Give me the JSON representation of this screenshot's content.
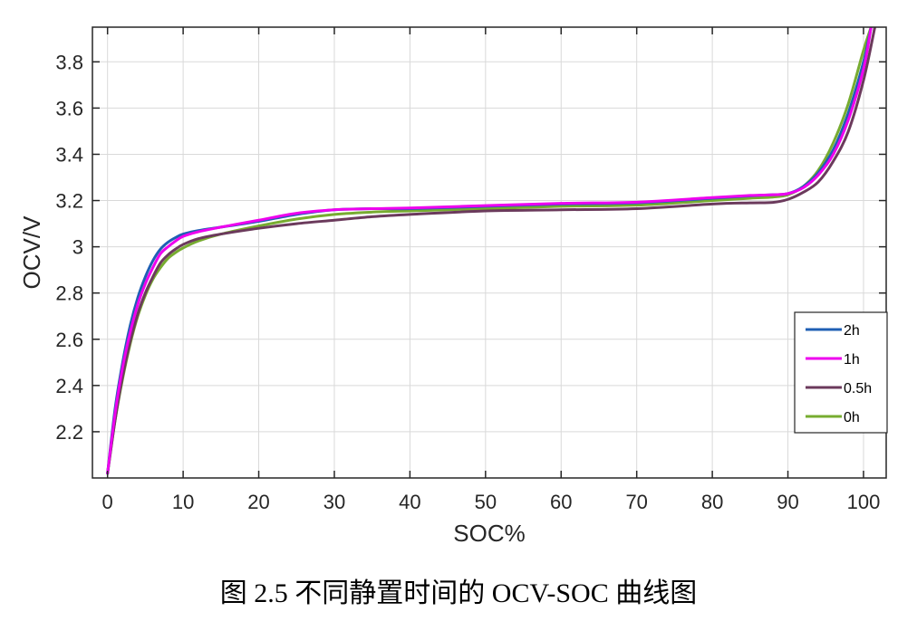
{
  "caption": "图 2.5 不同静置时间的 OCV-SOC 曲线图",
  "chart_data": {
    "type": "line",
    "xlabel": "SOC%",
    "ylabel": "OCV/V",
    "xlim": [
      -2,
      103
    ],
    "ylim": [
      2.0,
      3.95
    ],
    "xticks": [
      0,
      10,
      20,
      30,
      40,
      50,
      60,
      70,
      80,
      90,
      100
    ],
    "yticks": [
      2.2,
      2.4,
      2.6,
      2.8,
      3.0,
      3.2,
      3.4,
      3.6,
      3.8
    ],
    "ytick_labels": [
      "2.2",
      "2.4",
      "2.6",
      "2.8",
      "3",
      "3.2",
      "3.4",
      "3.6",
      "3.8"
    ],
    "grid": true,
    "legend_position": "right",
    "series": [
      {
        "name": "2h",
        "color": "#1f5fb4",
        "x": [
          0,
          1,
          2,
          3,
          4,
          5,
          6,
          7,
          8,
          9,
          10,
          12,
          15,
          20,
          25,
          30,
          35,
          40,
          50,
          60,
          70,
          80,
          85,
          88,
          90,
          92,
          94,
          96,
          98,
          100,
          101
        ],
        "y": [
          2.02,
          2.3,
          2.5,
          2.66,
          2.78,
          2.87,
          2.94,
          2.99,
          3.02,
          3.04,
          3.055,
          3.07,
          3.085,
          3.11,
          3.14,
          3.16,
          3.165,
          3.165,
          3.175,
          3.185,
          3.19,
          3.21,
          3.22,
          3.225,
          3.23,
          3.26,
          3.32,
          3.42,
          3.58,
          3.8,
          3.95
        ]
      },
      {
        "name": "1h",
        "color": "#ee00ee",
        "x": [
          0,
          1,
          2,
          3,
          4,
          5,
          6,
          7,
          8,
          9,
          10,
          12,
          15,
          20,
          25,
          30,
          35,
          40,
          50,
          60,
          70,
          80,
          85,
          88,
          90,
          92,
          94,
          96,
          98,
          100,
          101
        ],
        "y": [
          2.02,
          2.28,
          2.48,
          2.63,
          2.75,
          2.84,
          2.91,
          2.97,
          3.0,
          3.025,
          3.045,
          3.065,
          3.085,
          3.115,
          3.145,
          3.16,
          3.165,
          3.168,
          3.178,
          3.188,
          3.193,
          3.213,
          3.222,
          3.225,
          3.23,
          3.255,
          3.31,
          3.4,
          3.55,
          3.77,
          3.95
        ]
      },
      {
        "name": "0.5h",
        "color": "#6b3a5c",
        "x": [
          0,
          1,
          2,
          3,
          4,
          5,
          6,
          7,
          8,
          9,
          10,
          12,
          15,
          20,
          25,
          30,
          35,
          40,
          50,
          60,
          70,
          80,
          85,
          88,
          90,
          92,
          94,
          96,
          98,
          100,
          101.5
        ],
        "y": [
          2.02,
          2.25,
          2.44,
          2.59,
          2.71,
          2.8,
          2.87,
          2.93,
          2.965,
          2.99,
          3.01,
          3.035,
          3.055,
          3.08,
          3.1,
          3.115,
          3.13,
          3.14,
          3.155,
          3.16,
          3.165,
          3.185,
          3.19,
          3.192,
          3.205,
          3.235,
          3.28,
          3.37,
          3.5,
          3.72,
          3.95
        ]
      },
      {
        "name": "0h",
        "color": "#77ac30",
        "x": [
          0,
          1,
          2,
          3,
          4,
          5,
          6,
          7,
          8,
          9,
          10,
          12,
          15,
          20,
          25,
          30,
          35,
          40,
          50,
          60,
          70,
          80,
          85,
          88,
          90,
          92,
          94,
          96,
          98,
          100,
          101
        ],
        "y": [
          2.02,
          2.25,
          2.43,
          2.58,
          2.7,
          2.79,
          2.86,
          2.91,
          2.95,
          2.975,
          2.995,
          3.025,
          3.055,
          3.09,
          3.12,
          3.14,
          3.15,
          3.155,
          3.165,
          3.175,
          3.18,
          3.2,
          3.21,
          3.215,
          3.225,
          3.26,
          3.33,
          3.45,
          3.62,
          3.85,
          3.95
        ]
      }
    ]
  }
}
